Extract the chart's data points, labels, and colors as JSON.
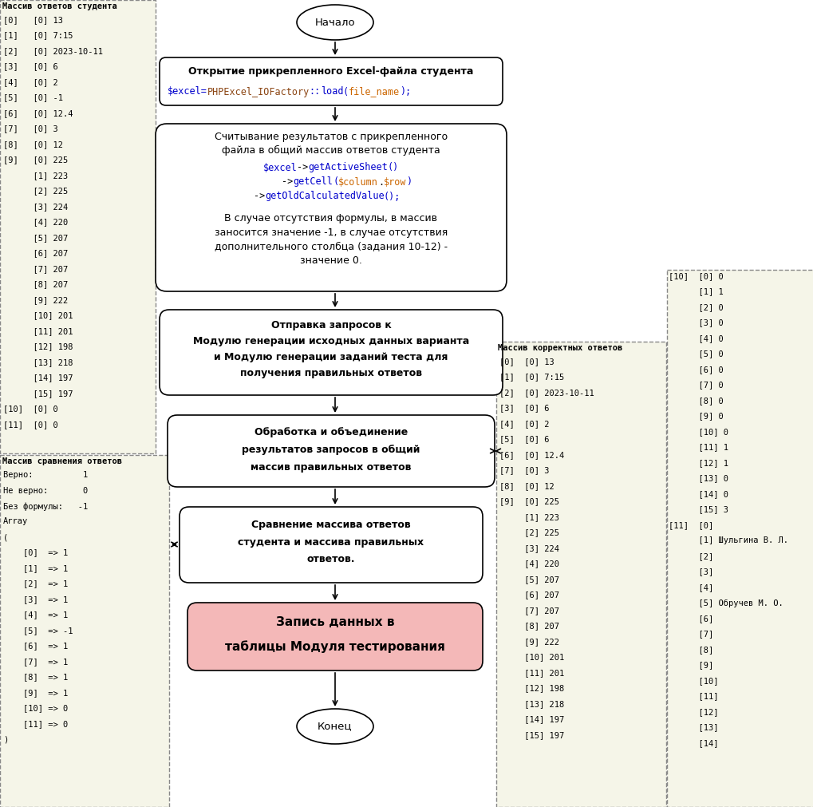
{
  "bg_color": "#ffffff",
  "panel_bg": "#f5f5e8",
  "highlight_color": "#f4b8b8",
  "left_top_title": "Массив ответов студента",
  "left_top_lines": [
    "[0]   [0] 13",
    "[1]   [0] 7:15",
    "[2]   [0] 2023-10-11",
    "[3]   [0] 6",
    "[4]   [0] 2",
    "[5]   [0] -1",
    "[6]   [0] 12.4",
    "[7]   [0] 3",
    "[8]   [0] 12",
    "[9]   [0] 225",
    "      [1] 223",
    "      [2] 225",
    "      [3] 224",
    "      [4] 220",
    "      [5] 207",
    "      [6] 207",
    "      [7] 207",
    "      [8] 207",
    "      [9] 222",
    "      [10] 201",
    "      [11] 201",
    "      [12] 198",
    "      [13] 218",
    "      [14] 197",
    "      [15] 197",
    "[10]  [0] 0",
    "[11]  [0] 0"
  ],
  "left_bottom_title": "Массив сравнения ответов",
  "left_bottom_lines": [
    "Верно:          1",
    "Не верно:       0",
    "Без формулы:   -1",
    "Array",
    "(",
    "    [0]  => 1",
    "    [1]  => 1",
    "    [2]  => 1",
    "    [3]  => 1",
    "    [4]  => 1",
    "    [5]  => -1",
    "    [6]  => 1",
    "    [7]  => 1",
    "    [8]  => 1",
    "    [9]  => 1",
    "    [10] => 0",
    "    [11] => 0",
    ")"
  ],
  "right_top_title": "Массив корректных ответов",
  "right_top_lines": [
    "[0]  [0] 13",
    "[1]  [0] 7:15",
    "[2]  [0] 2023-10-11",
    "[3]  [0] 6",
    "[4]  [0] 2",
    "[5]  [0] 6",
    "[6]  [0] 12.4",
    "[7]  [0] 3",
    "[8]  [0] 12",
    "[9]  [0] 225",
    "     [1] 223",
    "     [2] 225",
    "     [3] 224",
    "     [4] 220",
    "     [5] 207",
    "     [6] 207",
    "     [7] 207",
    "     [8] 207",
    "     [9] 222",
    "     [10] 201",
    "     [11] 201",
    "     [12] 198",
    "     [13] 218",
    "     [14] 197",
    "     [15] 197"
  ],
  "right_bottom_lines": [
    "[10]  [0] 0",
    "      [1] 1",
    "      [2] 0",
    "      [3] 0",
    "      [4] 0",
    "      [5] 0",
    "      [6] 0",
    "      [7] 0",
    "      [8] 0",
    "      [9] 0",
    "      [10] 0",
    "      [11] 1",
    "      [12] 1",
    "      [13] 0",
    "      [14] 0",
    "      [15] 3",
    "[11]  [0]",
    "      [1] Шульгина В. Л.",
    "      [2]",
    "      [3]",
    "      [4]",
    "      [5] Обручев М. О.",
    "      [6]",
    "      [7]",
    "      [8]",
    "      [9]",
    "      [10]",
    "      [11]",
    "      [12]",
    "      [13]",
    "      [14]"
  ],
  "node_start": "Начало",
  "node_end": "Конец",
  "node1_title": "Открытие прикрепленного Excel-файла студента",
  "node1_code": [
    [
      "$excel=",
      "#0000cc"
    ],
    [
      "PHPExcel_IOFactory",
      "#8b4513"
    ],
    [
      "::",
      "#0000cc"
    ],
    [
      "load",
      "#0000cc"
    ],
    [
      "(",
      "#0000cc"
    ],
    [
      "file_name",
      "#cc6600"
    ],
    [
      ");",
      "#0000cc"
    ]
  ],
  "node2_title1": "Считывание результатов с прикрепленного",
  "node2_title2": "файла в общий массив ответов студента",
  "node2_code1": [
    [
      "$excel",
      "#0000cc"
    ],
    [
      "->",
      "#000000"
    ],
    [
      "getActiveSheet",
      "#0000cc"
    ],
    [
      "()",
      "#0000cc"
    ]
  ],
  "node2_code2": [
    [
      "->",
      "#000000"
    ],
    [
      "getCell",
      "#0000cc"
    ],
    [
      "(",
      "#0000cc"
    ],
    [
      "$column",
      "#cc6600"
    ],
    [
      ".",
      "#000000"
    ],
    [
      "$row",
      "#cc6600"
    ],
    [
      ")",
      "#0000cc"
    ]
  ],
  "node2_code3": [
    [
      "->",
      "#000000"
    ],
    [
      "getOldCalculatedValue",
      "#0000cc"
    ],
    [
      "();",
      "#0000cc"
    ]
  ],
  "node2_text1": "В случае отсутствия формулы, в массив",
  "node2_text2": "заносится значение -1, в случае отсутствия",
  "node2_text3": "дополнительного столбца (задания 10-12) -",
  "node2_text4": "значение 0.",
  "node3_lines": [
    "Отправка запросов к",
    "Модулю генерации исходных данных варианта",
    "и Модулю генерации заданий теста для",
    "получения правильных ответов"
  ],
  "node4_lines": [
    "Обработка и объединение",
    "результатов запросов в общий",
    "массив правильных ответов"
  ],
  "node5_lines": [
    "Сравнение массива ответов",
    "студента и массива правильных",
    "ответов."
  ],
  "node6_lines": [
    "Запись данных в",
    "таблицы Модуля тестирования"
  ]
}
